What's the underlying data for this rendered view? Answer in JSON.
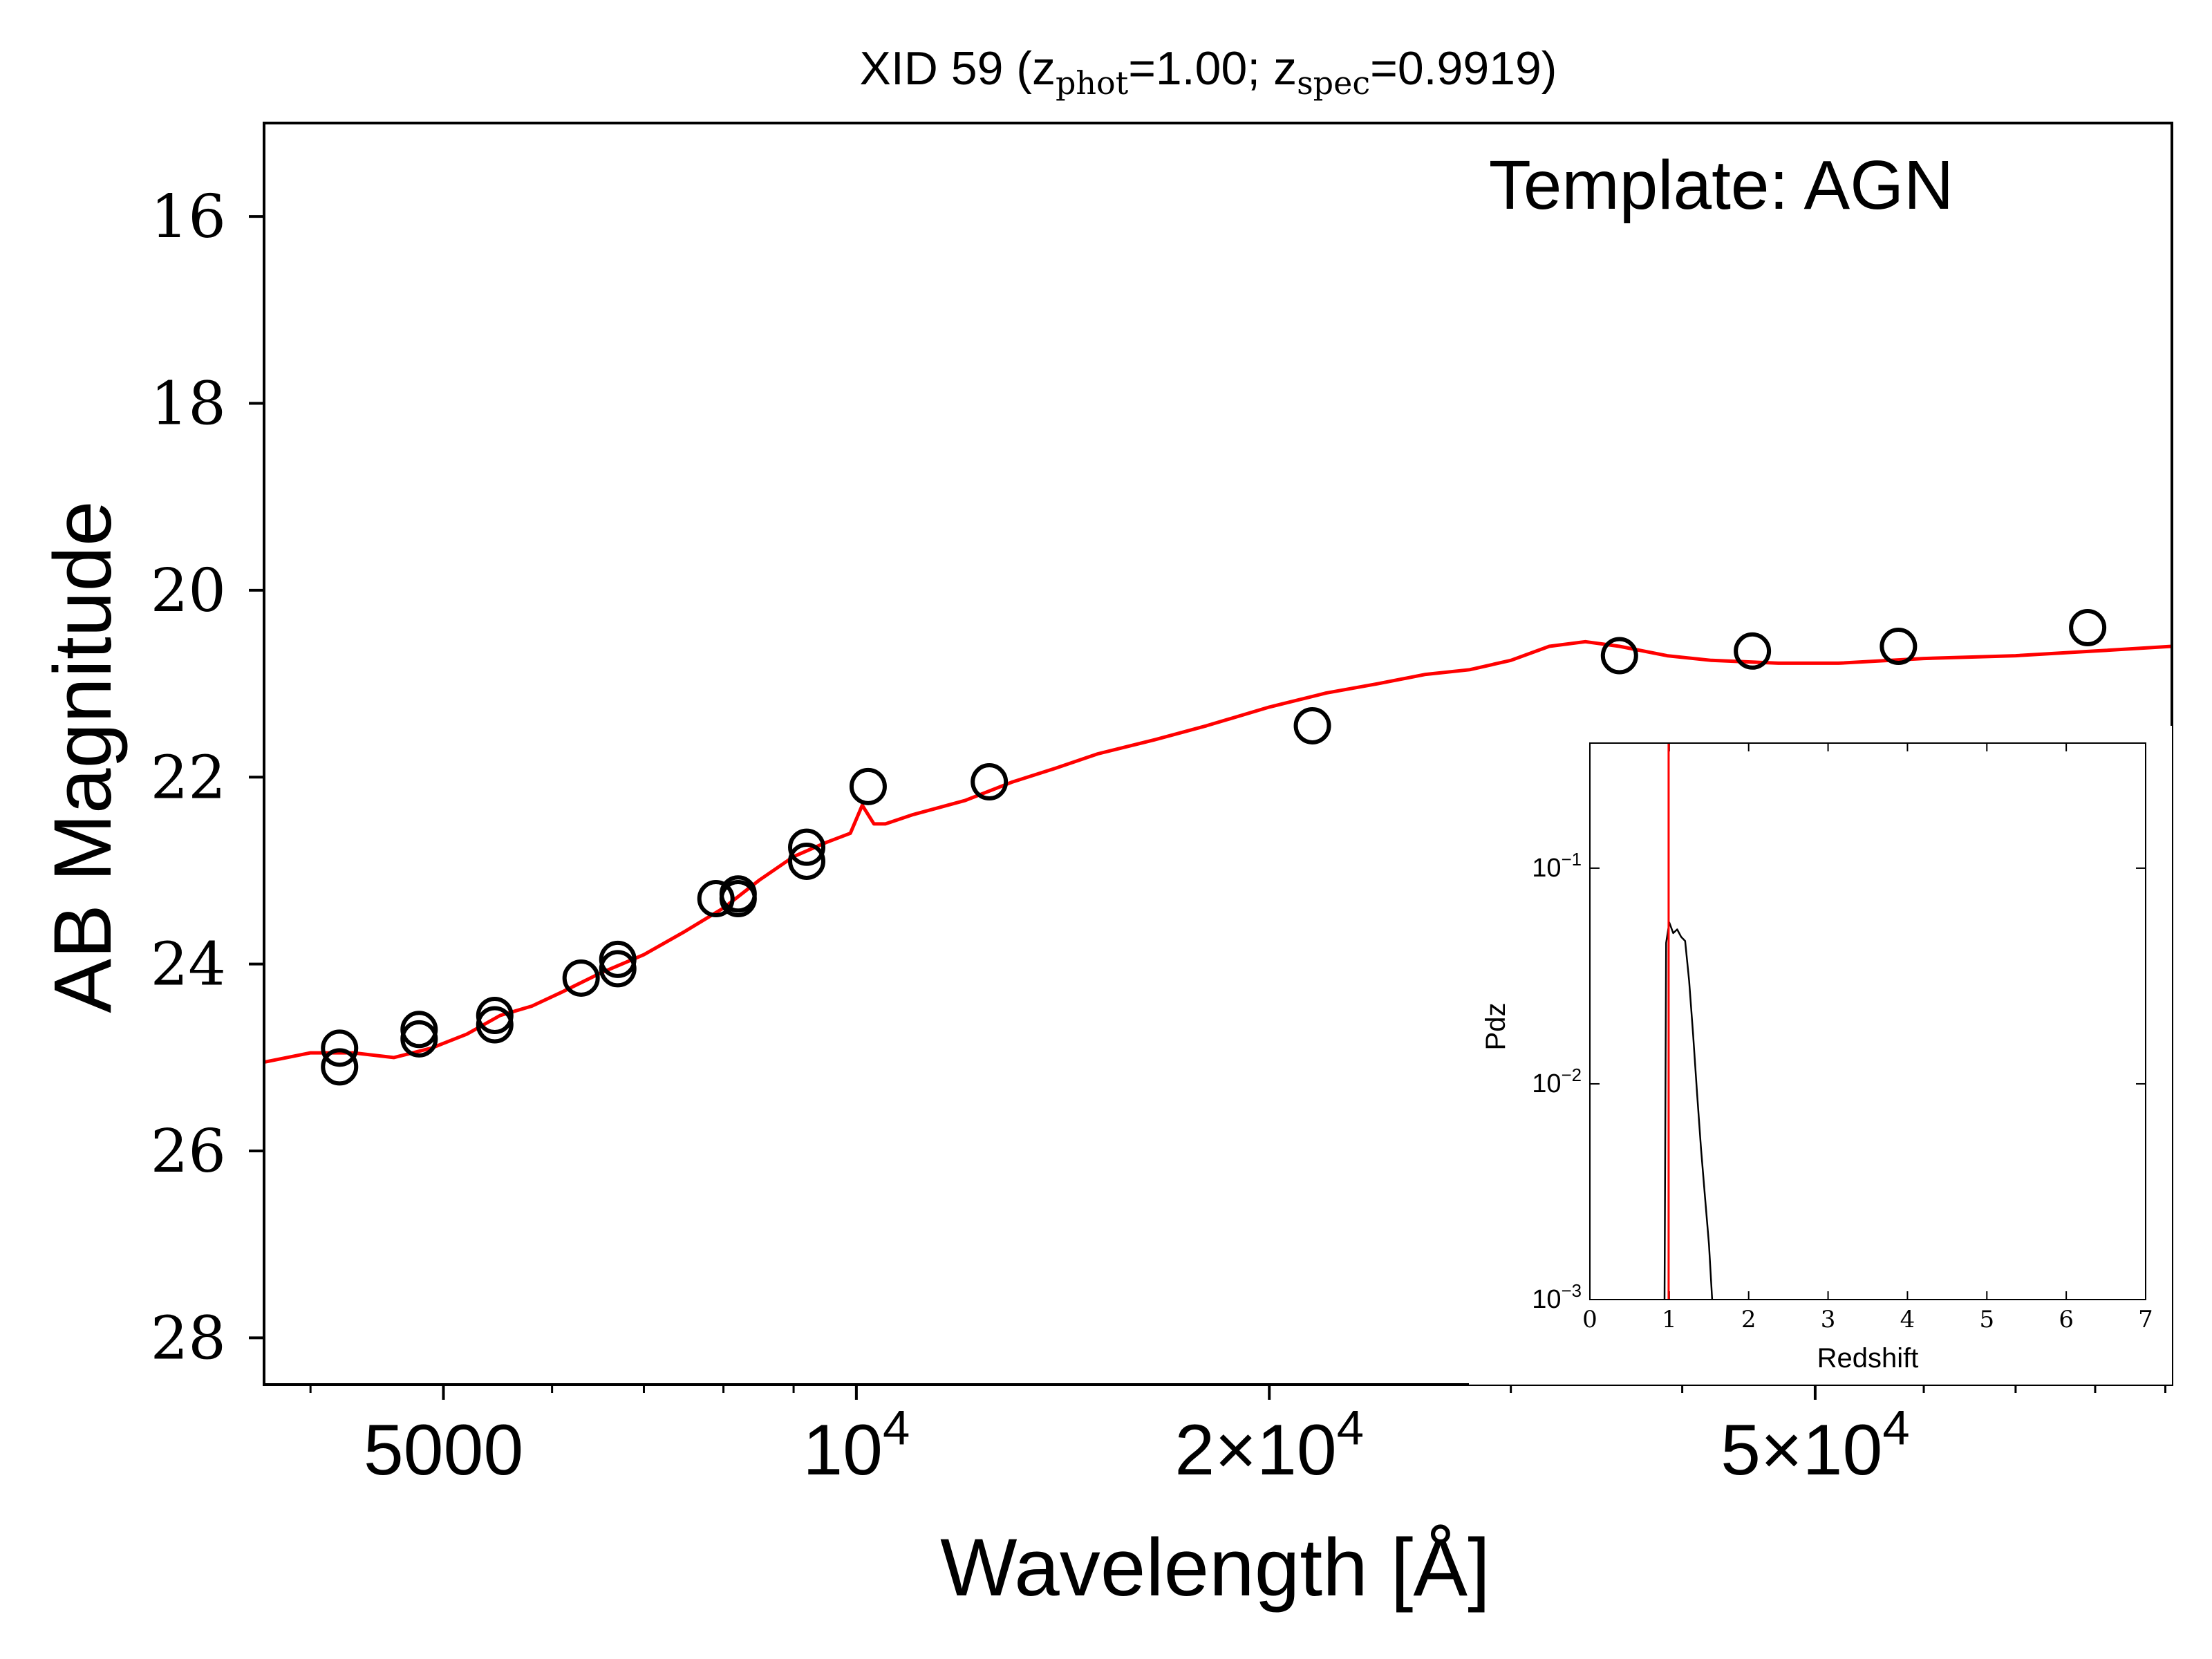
{
  "chart_data": [
    {
      "type": "scatter",
      "title": "XID 59 (z",
      "title_parts": {
        "prefix": "XID 59 (z",
        "sub_phot": "phot",
        "eq_phot": "=1.00; z",
        "sub_spec": "spec",
        "eq_spec": "=0.9919)"
      },
      "annotation": "Template: AGN",
      "xlabel": "Wavelength [Å]",
      "ylabel": "AB Magnitude",
      "x_scale": "log",
      "xlim": [
        3700,
        91000
      ],
      "ylim": [
        28.5,
        15.0
      ],
      "y_inverted": true,
      "x_ticks": [
        {
          "value": 5000,
          "label": "5000"
        },
        {
          "value": 10000,
          "base": "10",
          "exp": "4"
        },
        {
          "value": 20000,
          "base": "2×10",
          "exp": "4"
        },
        {
          "value": 50000,
          "base": "5×10",
          "exp": "4"
        }
      ],
      "x_minor_ticks": [
        4000,
        6000,
        7000,
        8000,
        9000,
        30000,
        40000,
        60000,
        70000,
        80000,
        90000
      ],
      "y_ticks": [
        {
          "value": 16,
          "label": "16"
        },
        {
          "value": 18,
          "label": "18"
        },
        {
          "value": 20,
          "label": "20"
        },
        {
          "value": 22,
          "label": "22"
        },
        {
          "value": 24,
          "label": "24"
        },
        {
          "value": 26,
          "label": "26"
        },
        {
          "value": 28,
          "label": "28"
        }
      ],
      "grid": false,
      "series": [
        {
          "kind": "scatter",
          "marker": "open-circle",
          "color": "#000000",
          "points": [
            {
              "x": 4200,
              "y": 24.9
            },
            {
              "x": 4200,
              "y": 25.1
            },
            {
              "x": 4800,
              "y": 24.8
            },
            {
              "x": 4800,
              "y": 24.7
            },
            {
              "x": 5450,
              "y": 24.65
            },
            {
              "x": 5450,
              "y": 24.55
            },
            {
              "x": 6300,
              "y": 24.15
            },
            {
              "x": 6700,
              "y": 24.05
            },
            {
              "x": 6700,
              "y": 23.95
            },
            {
              "x": 7900,
              "y": 23.3
            },
            {
              "x": 8200,
              "y": 23.3
            },
            {
              "x": 8200,
              "y": 23.25
            },
            {
              "x": 9200,
              "y": 22.9
            },
            {
              "x": 9200,
              "y": 22.75
            },
            {
              "x": 10200,
              "y": 22.1
            },
            {
              "x": 12500,
              "y": 22.05
            },
            {
              "x": 21500,
              "y": 21.45
            },
            {
              "x": 36000,
              "y": 20.7
            },
            {
              "x": 45000,
              "y": 20.65
            },
            {
              "x": 57500,
              "y": 20.6
            },
            {
              "x": 79000,
              "y": 20.4
            }
          ]
        },
        {
          "kind": "line",
          "color": "#ff0000",
          "points": [
            {
              "x": 3700,
              "y": 25.05
            },
            {
              "x": 4000,
              "y": 24.95
            },
            {
              "x": 4300,
              "y": 24.95
            },
            {
              "x": 4600,
              "y": 25.0
            },
            {
              "x": 4900,
              "y": 24.9
            },
            {
              "x": 5200,
              "y": 24.75
            },
            {
              "x": 5500,
              "y": 24.55
            },
            {
              "x": 5800,
              "y": 24.45
            },
            {
              "x": 6100,
              "y": 24.3
            },
            {
              "x": 6500,
              "y": 24.1
            },
            {
              "x": 7000,
              "y": 23.9
            },
            {
              "x": 7500,
              "y": 23.65
            },
            {
              "x": 8000,
              "y": 23.4
            },
            {
              "x": 8500,
              "y": 23.1
            },
            {
              "x": 9000,
              "y": 22.85
            },
            {
              "x": 9500,
              "y": 22.7
            },
            {
              "x": 9900,
              "y": 22.6
            },
            {
              "x": 10100,
              "y": 22.3
            },
            {
              "x": 10300,
              "y": 22.5
            },
            {
              "x": 10500,
              "y": 22.5
            },
            {
              "x": 11000,
              "y": 22.4
            },
            {
              "x": 12000,
              "y": 22.25
            },
            {
              "x": 13000,
              "y": 22.05
            },
            {
              "x": 14000,
              "y": 21.9
            },
            {
              "x": 15000,
              "y": 21.75
            },
            {
              "x": 16500,
              "y": 21.6
            },
            {
              "x": 18000,
              "y": 21.45
            },
            {
              "x": 20000,
              "y": 21.25
            },
            {
              "x": 22000,
              "y": 21.1
            },
            {
              "x": 24000,
              "y": 21.0
            },
            {
              "x": 26000,
              "y": 20.9
            },
            {
              "x": 28000,
              "y": 20.85
            },
            {
              "x": 30000,
              "y": 20.75
            },
            {
              "x": 32000,
              "y": 20.6
            },
            {
              "x": 34000,
              "y": 20.55
            },
            {
              "x": 36000,
              "y": 20.6
            },
            {
              "x": 39000,
              "y": 20.7
            },
            {
              "x": 42000,
              "y": 20.75
            },
            {
              "x": 47000,
              "y": 20.78
            },
            {
              "x": 52000,
              "y": 20.78
            },
            {
              "x": 60000,
              "y": 20.73
            },
            {
              "x": 70000,
              "y": 20.7
            },
            {
              "x": 80000,
              "y": 20.65
            },
            {
              "x": 91000,
              "y": 20.6
            }
          ]
        }
      ]
    },
    {
      "type": "line",
      "title": "",
      "xlabel": "Redshift",
      "ylabel": "Pdz",
      "x_scale": "linear",
      "y_scale": "log",
      "xlim": [
        0,
        7
      ],
      "ylim": [
        0.001,
        0.38
      ],
      "x_ticks": [
        0,
        1,
        2,
        3,
        4,
        5,
        6,
        7
      ],
      "y_ticks": [
        {
          "value": 0.1,
          "base": "10",
          "exp": "−1"
        },
        {
          "value": 0.01,
          "base": "10",
          "exp": "−2"
        },
        {
          "value": 0.001,
          "base": "10",
          "exp": "−3"
        }
      ],
      "vline": {
        "x": 0.9919,
        "color": "#ff0000"
      },
      "series": [
        {
          "color": "#000000",
          "points": [
            {
              "x": 0.94,
              "y": 0.001
            },
            {
              "x": 0.96,
              "y": 0.045
            },
            {
              "x": 1.0,
              "y": 0.056
            },
            {
              "x": 1.05,
              "y": 0.05
            },
            {
              "x": 1.1,
              "y": 0.052
            },
            {
              "x": 1.15,
              "y": 0.048
            },
            {
              "x": 1.2,
              "y": 0.046
            },
            {
              "x": 1.25,
              "y": 0.03
            },
            {
              "x": 1.3,
              "y": 0.017
            },
            {
              "x": 1.35,
              "y": 0.009
            },
            {
              "x": 1.4,
              "y": 0.005
            },
            {
              "x": 1.45,
              "y": 0.003
            },
            {
              "x": 1.5,
              "y": 0.0018
            },
            {
              "x": 1.54,
              "y": 0.001
            }
          ]
        }
      ]
    }
  ]
}
